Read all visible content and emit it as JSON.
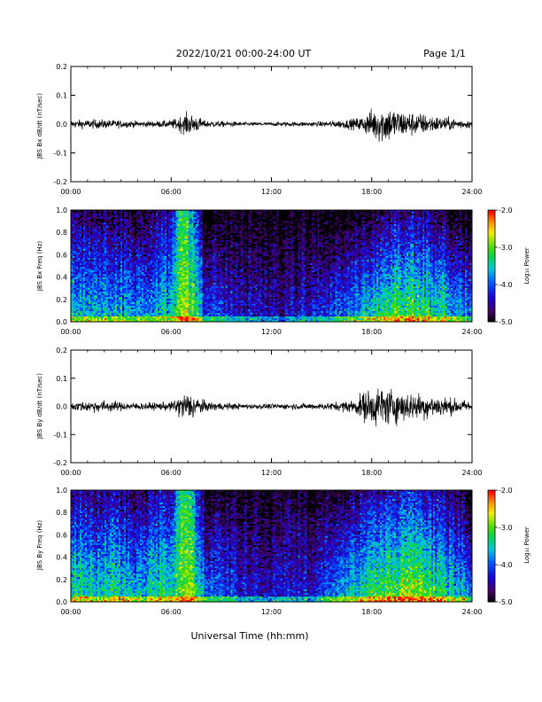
{
  "header": {
    "title": "2022/10/21  00:00-24:00 UT",
    "page": "Page 1/1"
  },
  "footer": {
    "xlabel": "Universal Time (hh:mm)"
  },
  "chart_data": [
    {
      "type": "line",
      "ylabel": "JBS Bx dB/dt (nT/sec)",
      "xlim": [
        "00:00",
        "24:00"
      ],
      "ylim": [
        -0.2,
        0.2
      ],
      "x_ticks": [
        "00:00",
        "06:00",
        "12:00",
        "18:00",
        "24:00"
      ],
      "y_ticks": [
        "0.2",
        "0.1",
        "0.0",
        "-0.1",
        "-0.2"
      ],
      "x_hours": [
        0,
        1,
        2,
        3,
        4,
        5,
        6,
        6.5,
        7,
        7.5,
        8,
        9,
        10,
        11,
        12,
        13,
        14,
        15,
        16,
        17,
        17.5,
        18,
        18.5,
        19,
        19.5,
        20,
        21,
        22,
        23,
        24
      ],
      "amplitude": [
        0.01,
        0.012,
        0.012,
        0.01,
        0.008,
        0.008,
        0.01,
        0.02,
        0.03,
        0.022,
        0.01,
        0.008,
        0.006,
        0.005,
        0.005,
        0.006,
        0.006,
        0.007,
        0.01,
        0.015,
        0.022,
        0.04,
        0.05,
        0.05,
        0.04,
        0.035,
        0.028,
        0.02,
        0.015,
        0.01
      ]
    },
    {
      "type": "heatmap",
      "ylabel": "JBS Bx Freq (Hz)",
      "xlim": [
        "00:00",
        "24:00"
      ],
      "ylim": [
        0.0,
        1.0
      ],
      "x_ticks": [
        "00:00",
        "06:00",
        "12:00",
        "18:00",
        "24:00"
      ],
      "y_ticks": [
        "1.0",
        "0.8",
        "0.6",
        "0.4",
        "0.2",
        "0.0"
      ],
      "colorbar": {
        "label": "Log₁₀ Power",
        "ticks": [
          "-2.0",
          "-3.0",
          "-4.0",
          "-5.0"
        ],
        "range": [
          -5.0,
          -2.0
        ]
      },
      "x_hours": [
        0,
        2,
        4,
        6,
        6.5,
        7,
        7.5,
        8,
        10,
        12,
        14,
        16,
        17,
        18,
        19,
        20,
        21,
        22,
        23,
        24
      ],
      "power_low_freq": [
        -3.4,
        -3.5,
        -3.6,
        -3.4,
        -3.0,
        -2.8,
        -3.2,
        -3.8,
        -4.3,
        -4.4,
        -4.3,
        -3.9,
        -3.6,
        -3.3,
        -3.1,
        -3.0,
        -3.0,
        -3.2,
        -3.5,
        -3.8
      ],
      "decay_per_hz": [
        1.3,
        1.3,
        1.3,
        1.2,
        0.4,
        0.5,
        1.0,
        1.3,
        0.8,
        0.7,
        0.7,
        1.3,
        1.5,
        1.6,
        1.6,
        1.6,
        1.6,
        1.6,
        1.5,
        1.4
      ]
    },
    {
      "type": "line",
      "ylabel": "JBS By dB/dt (nT/sec)",
      "xlim": [
        "00:00",
        "24:00"
      ],
      "ylim": [
        -0.2,
        0.2
      ],
      "x_ticks": [
        "00:00",
        "06:00",
        "12:00",
        "18:00",
        "24:00"
      ],
      "y_ticks": [
        "0.2",
        "0.1",
        "0.0",
        "-0.1",
        "-0.2"
      ],
      "x_hours": [
        0,
        1,
        2,
        3,
        4,
        5,
        6,
        6.5,
        7,
        7.5,
        8,
        9,
        10,
        11,
        12,
        13,
        14,
        15,
        16,
        17,
        17.5,
        18,
        18.5,
        19,
        19.5,
        20,
        21,
        22,
        23,
        24
      ],
      "amplitude": [
        0.012,
        0.015,
        0.016,
        0.012,
        0.01,
        0.01,
        0.012,
        0.03,
        0.04,
        0.03,
        0.014,
        0.01,
        0.008,
        0.007,
        0.007,
        0.008,
        0.008,
        0.009,
        0.012,
        0.02,
        0.04,
        0.05,
        0.055,
        0.05,
        0.045,
        0.04,
        0.035,
        0.03,
        0.02,
        0.015
      ]
    },
    {
      "type": "heatmap",
      "ylabel": "JBS By Freq (Hz)",
      "xlim": [
        "00:00",
        "24:00"
      ],
      "ylim": [
        0.0,
        1.0
      ],
      "x_ticks": [
        "00:00",
        "06:00",
        "12:00",
        "18:00",
        "24:00"
      ],
      "y_ticks": [
        "1.0",
        "0.8",
        "0.6",
        "0.4",
        "0.2",
        "0.0"
      ],
      "colorbar": {
        "label": "Log₁₀ Power",
        "ticks": [
          "-2.0",
          "-3.0",
          "-4.0",
          "-5.0"
        ],
        "range": [
          -5.0,
          -2.0
        ]
      },
      "x_hours": [
        0,
        2,
        4,
        6,
        6.5,
        7,
        7.5,
        8,
        10,
        12,
        14,
        16,
        17,
        18,
        19,
        20,
        21,
        22,
        23,
        24
      ],
      "power_low_freq": [
        -3.2,
        -3.3,
        -3.4,
        -3.2,
        -2.9,
        -2.7,
        -3.1,
        -3.7,
        -4.2,
        -4.3,
        -4.2,
        -3.7,
        -3.4,
        -3.1,
        -2.9,
        -2.8,
        -2.9,
        -3.1,
        -3.4,
        -3.6
      ],
      "decay_per_hz": [
        1.3,
        1.3,
        1.3,
        1.2,
        0.3,
        0.4,
        0.9,
        1.3,
        0.8,
        0.7,
        0.7,
        1.3,
        1.4,
        1.5,
        1.5,
        1.5,
        1.5,
        1.5,
        1.4,
        1.4
      ]
    }
  ]
}
